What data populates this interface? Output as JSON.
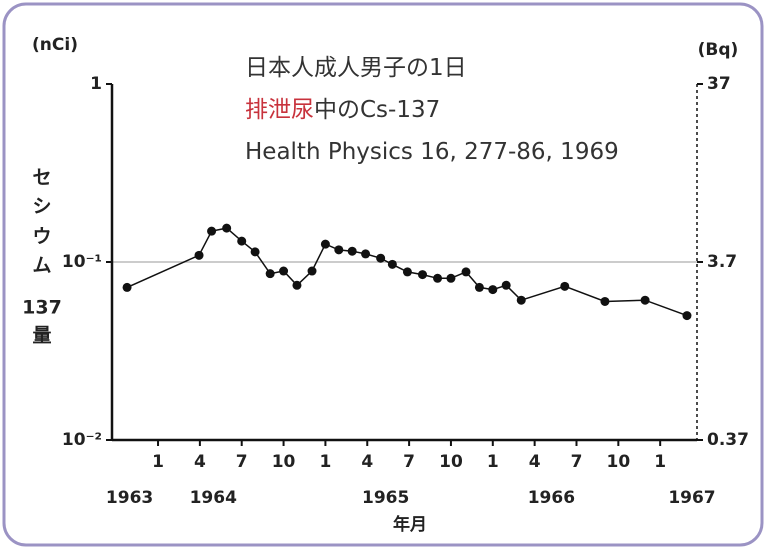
{
  "chart_data": {
    "type": "line",
    "title": {
      "lines": [
        [
          {
            "text": "日本人成人男子の1日",
            "color": "#333333"
          }
        ],
        [
          {
            "text": "排泄尿",
            "color": "#c8323c"
          },
          {
            "text": "中のCs-137",
            "color": "#333333"
          }
        ],
        [
          {
            "text": "Health Physics 16, 277-86, 1969",
            "color": "#333333"
          }
        ]
      ]
    },
    "y_unit": "(nCi)",
    "y2_unit": "(Bq)",
    "y_label": [
      "セ",
      "シ",
      "ウ",
      "ム",
      "137",
      "量"
    ],
    "x_label": "年月",
    "log_scale": true,
    "reference_line": 0.1,
    "x": [
      1963.815,
      1964.245,
      1964.32,
      1964.41,
      1964.5,
      1964.58,
      1964.67,
      1964.75,
      1964.83,
      1964.92,
      1965.0,
      1965.08,
      1965.16,
      1965.24,
      1965.33,
      1965.4,
      1965.49,
      1965.58,
      1965.67,
      1965.75,
      1965.84,
      1965.92,
      1966.0,
      1966.08,
      1966.17,
      1966.43,
      1966.67,
      1966.91,
      1967.16
    ],
    "series": [
      {
        "name": "Cs-137",
        "color": "#111111",
        "values": [
          0.072,
          0.109,
          0.149,
          0.155,
          0.131,
          0.114,
          0.086,
          0.089,
          0.074,
          0.089,
          0.126,
          0.117,
          0.115,
          0.111,
          0.105,
          0.097,
          0.088,
          0.085,
          0.081,
          0.081,
          0.088,
          0.072,
          0.07,
          0.074,
          0.061,
          0.073,
          0.06,
          0.061,
          0.05
        ]
      }
    ],
    "xlim": [
      1963.725,
      1967.22
    ],
    "xticks": [
      {
        "value": 1964.0,
        "label": "1"
      },
      {
        "value": 1964.25,
        "label": "4"
      },
      {
        "value": 1964.5,
        "label": "7"
      },
      {
        "value": 1964.75,
        "label": "10"
      },
      {
        "value": 1965.0,
        "label": "1"
      },
      {
        "value": 1965.25,
        "label": "4"
      },
      {
        "value": 1965.5,
        "label": "7"
      },
      {
        "value": 1965.75,
        "label": "10"
      },
      {
        "value": 1966.0,
        "label": "1"
      },
      {
        "value": 1966.25,
        "label": "4"
      },
      {
        "value": 1966.5,
        "label": "7"
      },
      {
        "value": 1966.75,
        "label": "10"
      },
      {
        "value": 1967.0,
        "label": "1"
      }
    ],
    "x_year_labels": [
      {
        "value": 1963.83,
        "label": "1963"
      },
      {
        "value": 1964.33,
        "label": "1964"
      },
      {
        "value": 1965.36,
        "label": "1965"
      },
      {
        "value": 1966.35,
        "label": "1966"
      },
      {
        "value": 1967.19,
        "label": "1967"
      }
    ],
    "ylim": [
      0.01,
      1
    ],
    "yticks": [
      {
        "value": 0.01,
        "label": "10⁻²"
      },
      {
        "value": 0.1,
        "label": "10⁻¹"
      },
      1
    ],
    "y2lim": [
      0.37,
      37
    ],
    "y2ticks": [
      0.37,
      3.7,
      37
    ]
  }
}
